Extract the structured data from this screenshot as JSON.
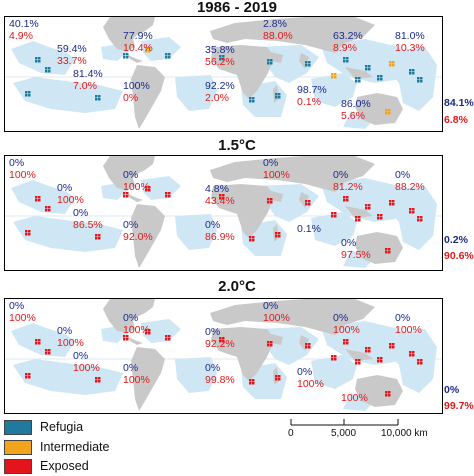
{
  "colors": {
    "refugia": "#1f7a9e",
    "intermediate": "#f2a51c",
    "exposed": "#e3151b",
    "ocean_region": "#cfe7f5",
    "land": "#c9c9c9",
    "refugia_text": "#1a2a8a",
    "exposed_text": "#e0191b"
  },
  "panels": [
    {
      "title": "1986 - 2019",
      "dominant_class": "refugia",
      "regions": [
        {
          "refugia": "40.1%",
          "exposed": "4.9%"
        },
        {
          "refugia": "59.4%",
          "exposed": "33.7%"
        },
        {
          "refugia": "77.9%",
          "exposed": "10.4%"
        },
        {
          "refugia": "2.8%",
          "exposed": "88.0%"
        },
        {
          "refugia": "63.2%",
          "exposed": "8.9%"
        },
        {
          "refugia": "81.0%",
          "exposed": "10.3%"
        },
        {
          "refugia": "35.8%",
          "exposed": "56.2%"
        },
        {
          "refugia": "81.4%",
          "exposed": "7.0%"
        },
        {
          "refugia": "100%",
          "exposed": "0%"
        },
        {
          "refugia": "92.2%",
          "exposed": "2.0%"
        },
        {
          "refugia": "98.7%",
          "exposed": "0.1%"
        },
        {
          "refugia": "86.0%",
          "exposed": "5.6%"
        }
      ],
      "global": {
        "refugia": "84.1%",
        "exposed": "6.8%"
      }
    },
    {
      "title": "1.5°C",
      "dominant_class": "exposed",
      "regions": [
        {
          "refugia": "0%",
          "exposed": "100%"
        },
        {
          "refugia": "0%",
          "exposed": "100%"
        },
        {
          "refugia": "0%",
          "exposed": "100%"
        },
        {
          "refugia": "0%",
          "exposed": "100%"
        },
        {
          "refugia": "0%",
          "exposed": "81.2%"
        },
        {
          "refugia": "0%",
          "exposed": "88.2%"
        },
        {
          "refugia": "4.8%",
          "exposed": "43.4%"
        },
        {
          "refugia": "0%",
          "exposed": "86.5%"
        },
        {
          "refugia": "0%",
          "exposed": "92.0%"
        },
        {
          "refugia": "0%",
          "exposed": "86.9%"
        },
        {
          "refugia": "0.1%",
          "exposed": ""
        },
        {
          "refugia": "0%",
          "exposed": "97.5%"
        }
      ],
      "global": {
        "refugia": "0.2%",
        "exposed": "90.6%"
      }
    },
    {
      "title": "2.0°C",
      "dominant_class": "exposed",
      "regions": [
        {
          "refugia": "0%",
          "exposed": "100%"
        },
        {
          "refugia": "0%",
          "exposed": "100%"
        },
        {
          "refugia": "0%",
          "exposed": "100%"
        },
        {
          "refugia": "0%",
          "exposed": "100%"
        },
        {
          "refugia": "0%",
          "exposed": "100%"
        },
        {
          "refugia": "0%",
          "exposed": "100%"
        },
        {
          "refugia": "0%",
          "exposed": "92.2%"
        },
        {
          "refugia": "0%",
          "exposed": "100%"
        },
        {
          "refugia": "0%",
          "exposed": "100%"
        },
        {
          "refugia": "0%",
          "exposed": "99.8%"
        },
        {
          "refugia": "0%",
          "exposed": "100%"
        },
        {
          "refugia": "",
          "exposed": "100%"
        }
      ],
      "global": {
        "refugia": "0%",
        "exposed": "99.7%"
      }
    }
  ],
  "legend": [
    {
      "label": "Refugia",
      "color": "#1f7a9e"
    },
    {
      "label": "Intermediate",
      "color": "#f2a51c"
    },
    {
      "label": "Exposed",
      "color": "#e3151b"
    }
  ],
  "scale_bar": {
    "ticks": [
      "0",
      "5,000",
      "10,000 km"
    ]
  }
}
